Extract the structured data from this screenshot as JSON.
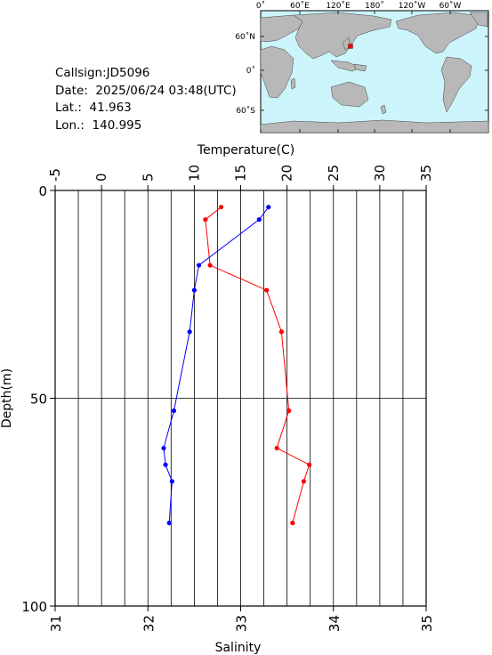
{
  "station": {
    "callsign": "Callsign:JD5096",
    "date": "Date:  2025/06/24 03:48(UTC)",
    "lat": "Lat.:  41.963",
    "lon": "Lon.:  140.995"
  },
  "map": {
    "lon_labels": [
      "0˚",
      "60˚E",
      "120˚E",
      "180˚",
      "120˚W",
      "60˚W"
    ],
    "lat_labels": [
      "60˚N",
      "0˚",
      "60˚S"
    ],
    "ocean_color": "#ccf5fb",
    "land_color": "#b8b8b8",
    "marker_color": "#ff0000"
  },
  "chart_data": {
    "type": "line",
    "ylabel": "Depth(m)",
    "ylim": [
      0,
      100
    ],
    "y_ticks": [
      "0",
      "50",
      "100"
    ],
    "top_axis": {
      "label": "Temperature(C)",
      "range": [
        -5,
        35
      ],
      "ticks": [
        "-5",
        "0",
        "5",
        "10",
        "15",
        "20",
        "25",
        "30",
        "35"
      ]
    },
    "bottom_axis": {
      "label": "Salinity",
      "range": [
        31,
        35
      ],
      "ticks": [
        "31",
        "32",
        "33",
        "34",
        "35"
      ]
    },
    "grid": true,
    "series": [
      {
        "color": "#ff0000",
        "axis": "top",
        "points": [
          [
            12.9,
            4
          ],
          [
            11.2,
            7
          ],
          [
            11.7,
            18
          ],
          [
            17.8,
            24
          ],
          [
            19.4,
            34
          ],
          [
            20.2,
            53
          ],
          [
            18.9,
            62
          ],
          [
            22.4,
            66
          ],
          [
            21.8,
            70
          ],
          [
            20.6,
            80
          ]
        ]
      },
      {
        "color": "#0000ff",
        "axis": "bottom",
        "points": [
          [
            33.3,
            4
          ],
          [
            33.2,
            7
          ],
          [
            32.55,
            18
          ],
          [
            32.5,
            24
          ],
          [
            32.45,
            34
          ],
          [
            32.28,
            53
          ],
          [
            32.17,
            62
          ],
          [
            32.19,
            66
          ],
          [
            32.26,
            70
          ],
          [
            32.23,
            80
          ]
        ]
      }
    ]
  }
}
